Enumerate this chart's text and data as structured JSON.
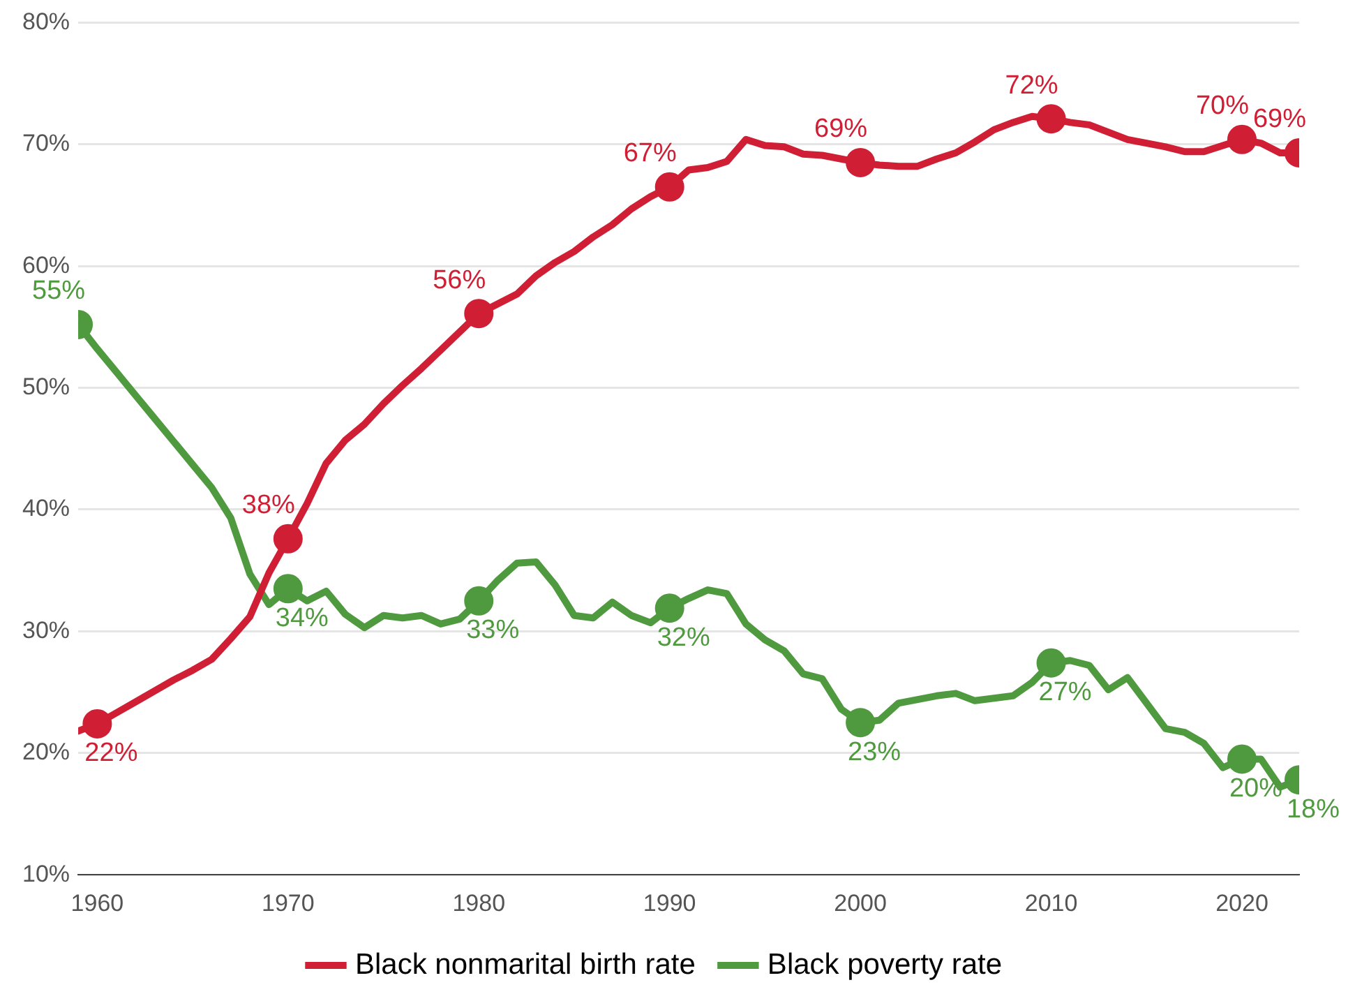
{
  "chart_data": {
    "type": "line",
    "x": [
      1959,
      1960,
      1961,
      1962,
      1963,
      1964,
      1965,
      1966,
      1967,
      1968,
      1969,
      1970,
      1971,
      1972,
      1973,
      1974,
      1975,
      1976,
      1977,
      1978,
      1979,
      1980,
      1981,
      1982,
      1983,
      1984,
      1985,
      1986,
      1987,
      1988,
      1989,
      1990,
      1991,
      1992,
      1993,
      1994,
      1995,
      1996,
      1997,
      1998,
      1999,
      2000,
      2001,
      2002,
      2003,
      2004,
      2005,
      2006,
      2007,
      2008,
      2009,
      2010,
      2011,
      2012,
      2013,
      2014,
      2015,
      2016,
      2017,
      2018,
      2019,
      2020,
      2021,
      2022,
      2023
    ],
    "series": [
      {
        "name": "Black nonmarital birth rate",
        "color": "#d01f35",
        "values": [
          21.8,
          22.4,
          23.3,
          24.2,
          25.1,
          26.0,
          26.8,
          27.7,
          29.4,
          31.2,
          34.8,
          37.6,
          40.5,
          43.8,
          45.7,
          47.0,
          48.7,
          50.2,
          51.6,
          53.1,
          54.6,
          56.1,
          56.9,
          57.7,
          59.2,
          60.3,
          61.2,
          62.4,
          63.4,
          64.7,
          65.7,
          66.5,
          67.9,
          68.1,
          68.6,
          70.4,
          69.9,
          69.8,
          69.2,
          69.1,
          68.8,
          68.5,
          68.3,
          68.2,
          68.2,
          68.8,
          69.3,
          70.2,
          71.2,
          71.8,
          72.3,
          72.1,
          71.8,
          71.6,
          71.0,
          70.4,
          70.1,
          69.8,
          69.4,
          69.4,
          69.9,
          70.4,
          70.1,
          69.3,
          69.3
        ],
        "value_labels": [
          null,
          "22%",
          null,
          null,
          null,
          null,
          null,
          null,
          null,
          null,
          null,
          "38%",
          null,
          null,
          null,
          null,
          null,
          null,
          null,
          null,
          null,
          "56%",
          null,
          null,
          null,
          null,
          null,
          null,
          null,
          null,
          null,
          "67%",
          null,
          null,
          null,
          null,
          null,
          null,
          null,
          null,
          null,
          "69%",
          null,
          null,
          null,
          null,
          null,
          null,
          null,
          null,
          null,
          "72%",
          null,
          null,
          null,
          null,
          null,
          null,
          null,
          null,
          null,
          "70%",
          null,
          null,
          "69%"
        ]
      },
      {
        "name": "Black poverty rate",
        "color": "#4f9a3f",
        "values": [
          55.2,
          53.2,
          51.3,
          49.4,
          47.5,
          45.6,
          43.7,
          41.8,
          39.3,
          34.7,
          32.2,
          33.5,
          32.5,
          33.3,
          31.4,
          30.3,
          31.3,
          31.1,
          31.3,
          30.6,
          31.0,
          32.5,
          34.2,
          35.6,
          35.7,
          33.8,
          31.3,
          31.1,
          32.4,
          31.3,
          30.7,
          31.9,
          32.7,
          33.4,
          33.1,
          30.6,
          29.3,
          28.4,
          26.5,
          26.1,
          23.6,
          22.5,
          22.7,
          24.1,
          24.4,
          24.7,
          24.9,
          24.3,
          24.5,
          24.7,
          25.8,
          27.4,
          27.6,
          27.2,
          25.2,
          26.2,
          24.1,
          22.0,
          21.7,
          20.8,
          18.8,
          19.5,
          19.5,
          17.2,
          17.8
        ],
        "value_labels": [
          "55%",
          null,
          null,
          null,
          null,
          null,
          null,
          null,
          null,
          null,
          null,
          "34%",
          null,
          null,
          null,
          null,
          null,
          null,
          null,
          null,
          null,
          "33%",
          null,
          null,
          null,
          null,
          null,
          null,
          null,
          null,
          null,
          "32%",
          null,
          null,
          null,
          null,
          null,
          null,
          null,
          null,
          null,
          "23%",
          null,
          null,
          null,
          null,
          null,
          null,
          null,
          null,
          null,
          "27%",
          null,
          null,
          null,
          null,
          null,
          null,
          null,
          null,
          null,
          "20%",
          null,
          null,
          "18%"
        ]
      }
    ],
    "xlim": [
      1959,
      2023
    ],
    "xticks": [
      1960,
      1970,
      1980,
      1990,
      2000,
      2010,
      2020
    ],
    "ylim": [
      10,
      80
    ],
    "yticks": [
      {
        "value": 10,
        "label": "10%"
      },
      {
        "value": 20,
        "label": "20%"
      },
      {
        "value": 30,
        "label": "30%"
      },
      {
        "value": 40,
        "label": "40%"
      },
      {
        "value": 50,
        "label": "50%"
      },
      {
        "value": 60,
        "label": "60%"
      },
      {
        "value": 70,
        "label": "70%"
      },
      {
        "value": 80,
        "label": "80%"
      }
    ],
    "grid": "y",
    "legend": "bottom",
    "line_style": "solid"
  }
}
